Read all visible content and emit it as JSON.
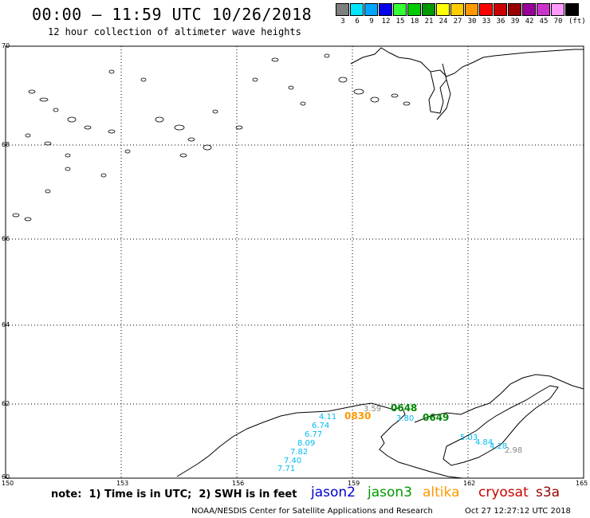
{
  "header": {
    "title": "00:00 – 11:59 UTC 10/26/2018",
    "subtitle": "12 hour collection of altimeter wave heights"
  },
  "legend": {
    "unit": "(ft)",
    "bins": [
      {
        "label": "3",
        "color": "#7f7f7f"
      },
      {
        "label": "6",
        "color": "#00e5ff"
      },
      {
        "label": "9",
        "color": "#00a5ff"
      },
      {
        "label": "12",
        "color": "#0000ee"
      },
      {
        "label": "15",
        "color": "#33ff33"
      },
      {
        "label": "18",
        "color": "#00cc00"
      },
      {
        "label": "21",
        "color": "#009900"
      },
      {
        "label": "24",
        "color": "#ffff00"
      },
      {
        "label": "27",
        "color": "#ffcc00"
      },
      {
        "label": "30",
        "color": "#ff9900"
      },
      {
        "label": "33",
        "color": "#ff0000"
      },
      {
        "label": "36",
        "color": "#cc0000"
      },
      {
        "label": "39",
        "color": "#990000"
      },
      {
        "label": "42",
        "color": "#990099"
      },
      {
        "label": "45",
        "color": "#cc33cc"
      },
      {
        "label": "70",
        "color": "#ff99ff"
      },
      {
        "label": "",
        "color": "#000000"
      }
    ]
  },
  "map": {
    "lat_labels": [
      "70",
      "68",
      "66",
      "64",
      "62",
      "60"
    ],
    "lon_labels": [
      "150",
      "153",
      "156",
      "159",
      "162",
      "165"
    ],
    "pass_times": [
      {
        "text": "0830",
        "color": "#ff9900"
      },
      {
        "text": "0648",
        "color": "#008800"
      },
      {
        "text": "0649",
        "color": "#008800"
      }
    ],
    "swh_values": [
      {
        "text": "3.59",
        "color": "#888888"
      },
      {
        "text": "4.11",
        "color": "#00bbee"
      },
      {
        "text": "6.74",
        "color": "#00bbee"
      },
      {
        "text": "6.77",
        "color": "#00bbee"
      },
      {
        "text": "8.09",
        "color": "#00bbee"
      },
      {
        "text": "7.82",
        "color": "#00bbee"
      },
      {
        "text": "7.40",
        "color": "#00bbee"
      },
      {
        "text": "7.71",
        "color": "#00bbee"
      },
      {
        "text": "3.80",
        "color": "#00bbee"
      },
      {
        "text": "5.03",
        "color": "#00bbee"
      },
      {
        "text": "4.84",
        "color": "#00bbee"
      },
      {
        "text": "4.28",
        "color": "#00bbee"
      },
      {
        "text": "2.98",
        "color": "#888888"
      }
    ]
  },
  "note": "note:  1) Time is in UTC;  2) SWH is in feet",
  "satellites": [
    {
      "name": "jason2",
      "color": "#0000cc"
    },
    {
      "name": "jason3",
      "color": "#009900"
    },
    {
      "name": "altika",
      "color": "#ff9900"
    },
    {
      "name": "cryosat",
      "color": "#cc0000"
    },
    {
      "name": "s3a",
      "color": "#990000"
    }
  ],
  "footer": {
    "credit": "NOAA/NESDIS Center for Satellite Applications and Research",
    "timestamp": "Oct 27 12:27:12 UTC 2018"
  }
}
